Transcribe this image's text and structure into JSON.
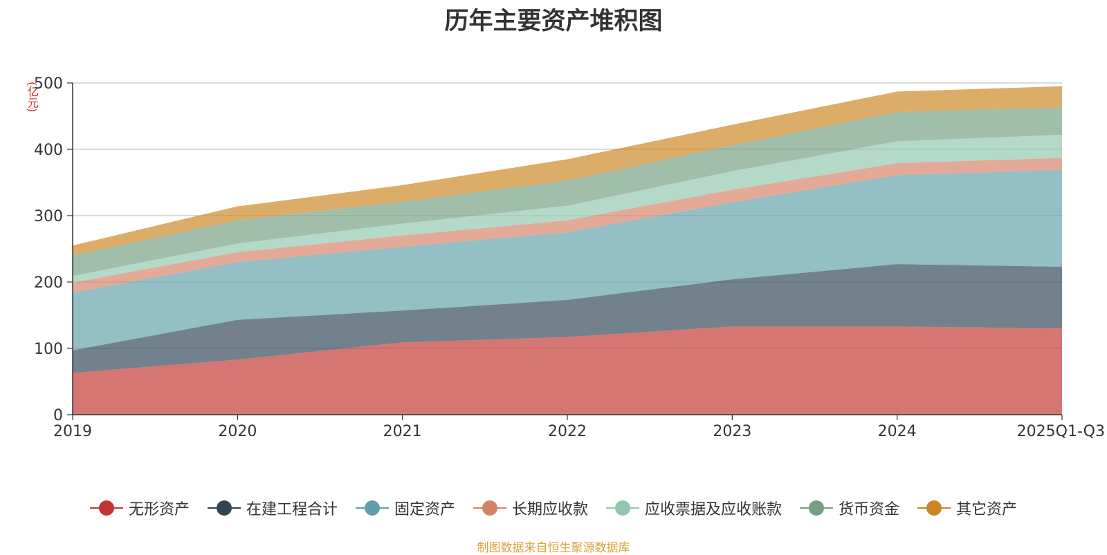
{
  "chart_data": {
    "type": "area",
    "stacked": true,
    "title": "历年主要资产堆积图",
    "unit_label": "(亿元)",
    "categories": [
      "2019",
      "2020",
      "2021",
      "2022",
      "2023",
      "2024",
      "2025Q1-Q3"
    ],
    "ylim": [
      0,
      500
    ],
    "yticks": [
      "0",
      "100",
      "200",
      "300",
      "400",
      "500"
    ],
    "grid": true,
    "legend_position": "bottom",
    "series": [
      {
        "name": "无形资产",
        "color": "#c23531",
        "values": [
          63,
          83,
          109,
          117,
          133,
          133,
          130
        ]
      },
      {
        "name": "在建工程合计",
        "color": "#2f4554",
        "values": [
          34,
          60,
          48,
          56,
          71,
          94,
          93
        ]
      },
      {
        "name": "固定资产",
        "color": "#61a0a8",
        "values": [
          87,
          87,
          96,
          102,
          116,
          134,
          146
        ]
      },
      {
        "name": "长期应收款",
        "color": "#d48265",
        "values": [
          15,
          15,
          17,
          18,
          19,
          18,
          18
        ]
      },
      {
        "name": "应收票据及应收账款",
        "color": "#91c7ae",
        "values": [
          10,
          13,
          18,
          22,
          28,
          33,
          35
        ]
      },
      {
        "name": "货币资金",
        "color": "#749f83",
        "values": [
          31,
          35,
          33,
          38,
          39,
          44,
          41
        ]
      },
      {
        "name": "其它资产",
        "color": "#ca8622",
        "values": [
          15,
          21,
          25,
          32,
          31,
          31,
          32
        ]
      }
    ]
  },
  "source_note": "制图数据来自恒生聚源数据库"
}
